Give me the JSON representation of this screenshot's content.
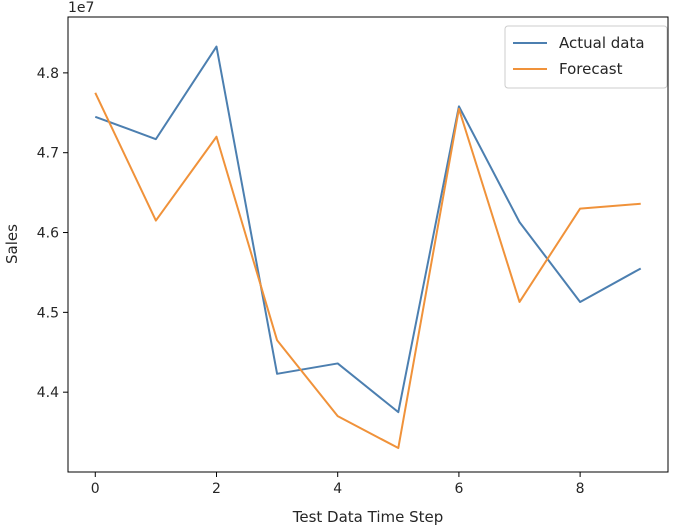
{
  "chart_data": {
    "type": "line",
    "title": "",
    "xlabel": "Test Data Time Step",
    "ylabel": "Sales",
    "y_offset_label": "1e7",
    "x": [
      0,
      1,
      2,
      3,
      4,
      5,
      6,
      7,
      8,
      9
    ],
    "xlim": [
      -0.45,
      9.45
    ],
    "ylim": [
      43000000,
      48700000
    ],
    "x_ticks": [
      0,
      2,
      4,
      6,
      8
    ],
    "x_tick_labels": [
      "0",
      "2",
      "4",
      "6",
      "8"
    ],
    "y_ticks": [
      44000000,
      45000000,
      46000000,
      47000000,
      48000000
    ],
    "y_tick_labels": [
      "4.4",
      "4.5",
      "4.6",
      "4.7",
      "4.8"
    ],
    "grid": false,
    "legend_position": "top-right",
    "series": [
      {
        "name": "Actual data",
        "color": "#4c7fb0",
        "values": [
          47450000,
          47170000,
          48330000,
          44230000,
          44360000,
          43750000,
          47580000,
          46130000,
          45130000,
          45550000
        ]
      },
      {
        "name": "Forecast",
        "color": "#f0923a",
        "values": [
          47750000,
          46150000,
          47200000,
          44650000,
          43700000,
          43300000,
          47550000,
          45130000,
          46300000,
          46360000
        ]
      }
    ]
  }
}
